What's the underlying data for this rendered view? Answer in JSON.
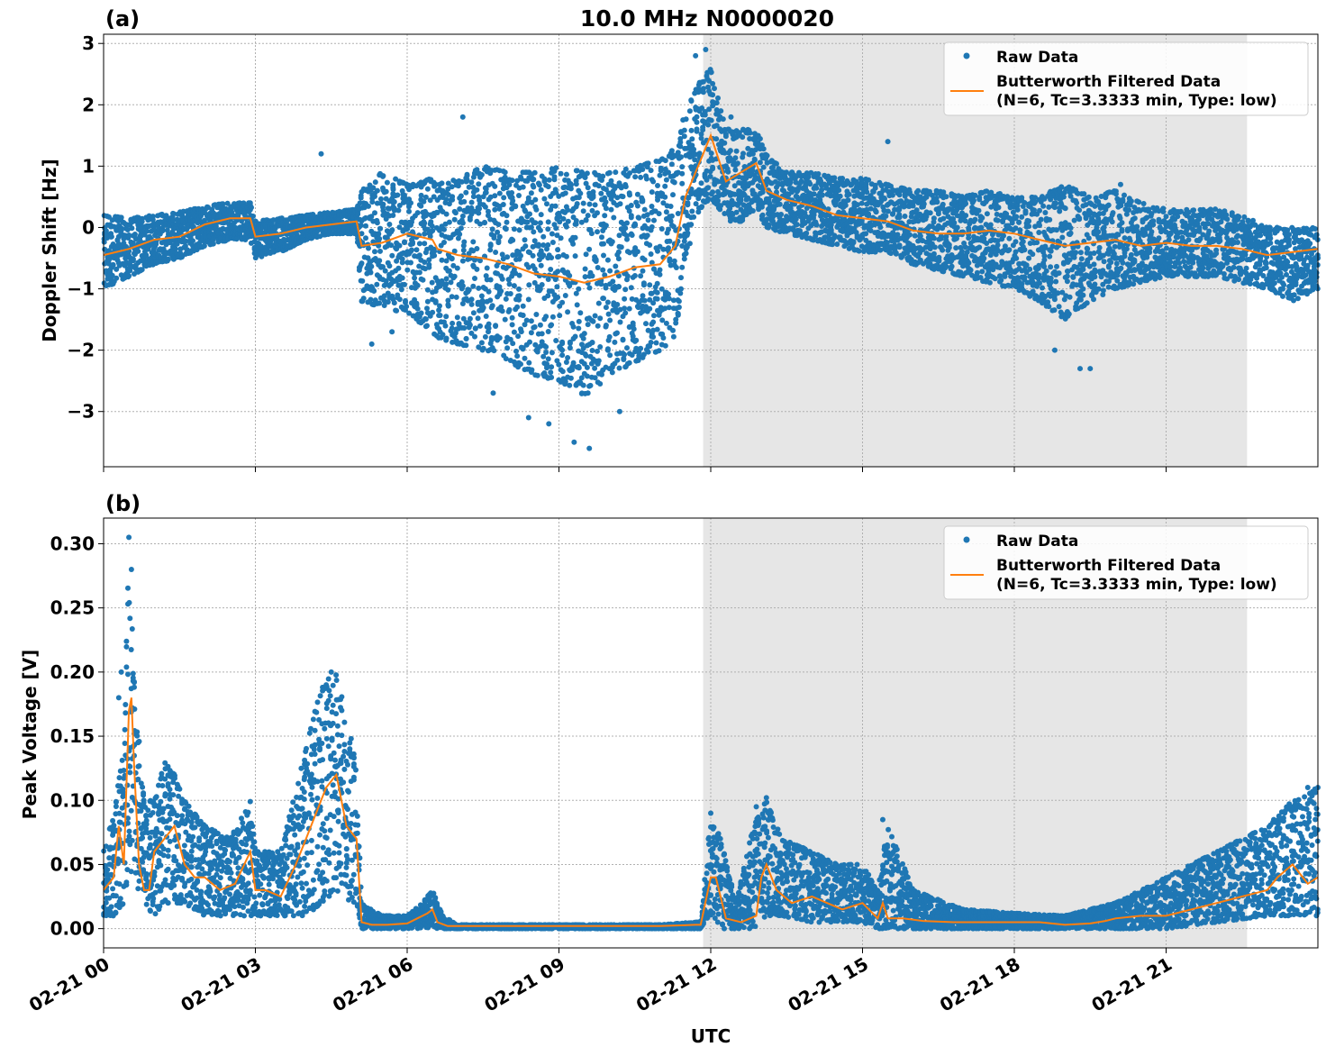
{
  "figure": {
    "title": "10.0 MHz N0000020",
    "xlabel": "UTC",
    "panel_a_label": "(a)",
    "panel_b_label": "(b)",
    "legend": {
      "raw_label": "Raw Data",
      "filtered_line1": "Butterworth Filtered Data",
      "filtered_line2": "(N=6, Tc=3.3333 min, Type: low)"
    },
    "colors": {
      "raw": "#1f77b4",
      "filtered": "#ff7f0e",
      "shade": "#e6e6e6",
      "grid": "#b0b0b0"
    }
  },
  "chart_data": [
    {
      "type": "scatter",
      "panel": "(a)",
      "title": "10.0 MHz N0000020",
      "ylabel": "Doppler Shift [Hz]",
      "xlabel": "",
      "x_unit": "hours UTC since 02-21 00:00",
      "xlim": [
        0,
        24
      ],
      "ylim": [
        -3.9,
        3.15
      ],
      "yticks": [
        -3,
        -2,
        -1,
        0,
        1,
        2,
        3
      ],
      "ytick_labels": [
        "−3",
        "−2",
        "−1",
        "0",
        "1",
        "2",
        "3"
      ],
      "grid": true,
      "legend_position": "top-right",
      "shaded_span": [
        11.85,
        22.6
      ],
      "series": [
        {
          "name": "Butterworth Filtered Data",
          "x": [
            0,
            0.5,
            1,
            1.5,
            2,
            2.5,
            2.9,
            3,
            3.5,
            4,
            4.5,
            5,
            5.1,
            5.5,
            6,
            6.5,
            6.6,
            7,
            7.5,
            8,
            8.5,
            9,
            9.5,
            10,
            10.5,
            11,
            11.3,
            11.5,
            11.8,
            12,
            12.3,
            12.6,
            12.9,
            13.1,
            13.5,
            14,
            14.5,
            15,
            15.5,
            16,
            16.5,
            17,
            17.5,
            18,
            18.5,
            19,
            19.5,
            20,
            20.5,
            21,
            21.5,
            22,
            22.5,
            23,
            23.5,
            24
          ],
          "y": [
            -0.45,
            -0.35,
            -0.2,
            -0.15,
            0.05,
            0.15,
            0.15,
            -0.15,
            -0.1,
            0.0,
            0.05,
            0.1,
            -0.3,
            -0.25,
            -0.1,
            -0.2,
            -0.35,
            -0.45,
            -0.5,
            -0.6,
            -0.75,
            -0.8,
            -0.9,
            -0.8,
            -0.65,
            -0.6,
            -0.3,
            0.5,
            1.1,
            1.5,
            0.75,
            0.9,
            1.05,
            0.6,
            0.45,
            0.35,
            0.2,
            0.15,
            0.1,
            -0.05,
            -0.1,
            -0.1,
            -0.05,
            -0.1,
            -0.2,
            -0.3,
            -0.25,
            -0.2,
            -0.3,
            -0.25,
            -0.3,
            -0.3,
            -0.35,
            -0.45,
            -0.4,
            -0.35
          ]
        },
        {
          "name": "Raw Data",
          "envelope_x": [
            0,
            0.5,
            1,
            1.5,
            2,
            2.5,
            2.9,
            3,
            3.5,
            4,
            4.5,
            5,
            5.1,
            5.5,
            6,
            6.5,
            6.6,
            7,
            7.5,
            8,
            8.5,
            9,
            9.5,
            10,
            10.5,
            11,
            11.3,
            11.5,
            11.8,
            12,
            12.3,
            12.6,
            12.9,
            13.1,
            13.5,
            14,
            14.5,
            15,
            15.5,
            16,
            16.5,
            17,
            17.5,
            18,
            18.5,
            19,
            19.5,
            20,
            20.5,
            21,
            21.5,
            22,
            22.5,
            23,
            23.5,
            24
          ],
          "envelope_upper": [
            0.2,
            0.15,
            0.2,
            0.25,
            0.35,
            0.4,
            0.4,
            0.1,
            0.15,
            0.2,
            0.25,
            0.3,
            0.6,
            0.9,
            0.7,
            0.8,
            0.7,
            0.8,
            1.0,
            0.9,
            0.9,
            1.0,
            0.9,
            0.9,
            1.0,
            1.1,
            1.3,
            1.9,
            2.4,
            2.6,
            1.6,
            1.6,
            1.6,
            1.2,
            0.9,
            0.9,
            0.8,
            0.8,
            0.7,
            0.6,
            0.6,
            0.5,
            0.6,
            0.5,
            0.5,
            0.7,
            0.5,
            0.6,
            0.4,
            0.3,
            0.3,
            0.3,
            0.2,
            0.0,
            0.0,
            0.0
          ],
          "envelope_lower": [
            -1.0,
            -0.8,
            -0.6,
            -0.5,
            -0.3,
            -0.2,
            -0.2,
            -0.5,
            -0.4,
            -0.2,
            -0.1,
            -0.1,
            -1.2,
            -1.3,
            -1.4,
            -1.7,
            -1.8,
            -1.9,
            -2.0,
            -2.2,
            -2.4,
            -2.5,
            -2.8,
            -2.4,
            -2.2,
            -2.0,
            -1.8,
            -0.5,
            0.3,
            0.5,
            0.1,
            0.1,
            0.3,
            0.0,
            -0.1,
            -0.2,
            -0.3,
            -0.4,
            -0.4,
            -0.6,
            -0.7,
            -0.8,
            -0.9,
            -1.0,
            -1.2,
            -1.5,
            -1.2,
            -1.0,
            -0.9,
            -0.8,
            -0.8,
            -0.8,
            -0.9,
            -1.0,
            -1.2,
            -1.0
          ],
          "extremes": [
            [
              4.3,
              1.2
            ],
            [
              5.3,
              -1.9
            ],
            [
              5.7,
              -1.7
            ],
            [
              7.1,
              1.8
            ],
            [
              7.7,
              -2.7
            ],
            [
              8.4,
              -3.1
            ],
            [
              8.8,
              -3.2
            ],
            [
              9.3,
              -3.5
            ],
            [
              9.6,
              -3.6
            ],
            [
              10.2,
              -3.0
            ],
            [
              11.7,
              2.8
            ],
            [
              11.9,
              2.9
            ],
            [
              12.2,
              1.9
            ],
            [
              12.4,
              1.8
            ],
            [
              15.5,
              1.4
            ],
            [
              18.8,
              -2.0
            ],
            [
              19.3,
              -2.3
            ],
            [
              19.5,
              -2.3
            ],
            [
              20.1,
              0.7
            ],
            [
              22.3,
              0.2
            ],
            [
              24.0,
              -0.5
            ]
          ]
        }
      ]
    },
    {
      "type": "scatter",
      "panel": "(b)",
      "ylabel": "Peak Voltage [V]",
      "xlabel": "UTC",
      "x_unit": "hours UTC since 02-21 00:00",
      "xlim": [
        0,
        24
      ],
      "ylim": [
        -0.015,
        0.32
      ],
      "yticks": [
        0.0,
        0.05,
        0.1,
        0.15,
        0.2,
        0.25,
        0.3
      ],
      "ytick_labels": [
        "0.00",
        "0.05",
        "0.10",
        "0.15",
        "0.20",
        "0.25",
        "0.30"
      ],
      "xticks": [
        0,
        3,
        6,
        9,
        12,
        15,
        18,
        21
      ],
      "xtick_labels": [
        "02-21 00",
        "02-21 03",
        "02-21 06",
        "02-21 09",
        "02-21 12",
        "02-21 15",
        "02-21 18",
        "02-21 21"
      ],
      "grid": true,
      "legend_position": "top-right",
      "shaded_span": [
        11.85,
        22.6
      ],
      "series": [
        {
          "name": "Butterworth Filtered Data",
          "x": [
            0,
            0.2,
            0.3,
            0.4,
            0.5,
            0.55,
            0.6,
            0.7,
            0.8,
            0.9,
            1.0,
            1.2,
            1.4,
            1.6,
            1.8,
            2.0,
            2.3,
            2.6,
            2.9,
            3.0,
            3.2,
            3.5,
            3.8,
            4.0,
            4.2,
            4.4,
            4.6,
            4.8,
            5.0,
            5.1,
            5.3,
            5.6,
            6.0,
            6.2,
            6.4,
            6.5,
            6.6,
            6.8,
            7.0,
            8.0,
            9.0,
            10.0,
            11.0,
            11.7,
            11.8,
            12.0,
            12.1,
            12.3,
            12.6,
            12.9,
            13.0,
            13.1,
            13.3,
            13.6,
            14.0,
            14.3,
            14.6,
            15.0,
            15.3,
            15.4,
            15.5,
            15.8,
            16.2,
            16.8,
            17.5,
            18.0,
            18.5,
            19.0,
            19.5,
            19.8,
            20.0,
            20.5,
            21.0,
            21.5,
            22.0,
            22.5,
            23.0,
            23.2,
            23.5,
            23.8,
            24.0
          ],
          "y": [
            0.03,
            0.04,
            0.08,
            0.05,
            0.17,
            0.18,
            0.13,
            0.05,
            0.03,
            0.03,
            0.06,
            0.07,
            0.08,
            0.05,
            0.04,
            0.04,
            0.03,
            0.035,
            0.06,
            0.03,
            0.03,
            0.025,
            0.05,
            0.07,
            0.09,
            0.11,
            0.12,
            0.08,
            0.07,
            0.005,
            0.003,
            0.003,
            0.004,
            0.008,
            0.012,
            0.015,
            0.005,
            0.002,
            0.002,
            0.002,
            0.002,
            0.002,
            0.002,
            0.003,
            0.003,
            0.04,
            0.04,
            0.008,
            0.005,
            0.01,
            0.04,
            0.05,
            0.03,
            0.02,
            0.025,
            0.02,
            0.015,
            0.02,
            0.008,
            0.02,
            0.008,
            0.008,
            0.006,
            0.005,
            0.005,
            0.005,
            0.005,
            0.003,
            0.004,
            0.006,
            0.008,
            0.01,
            0.01,
            0.015,
            0.02,
            0.025,
            0.03,
            0.04,
            0.05,
            0.035,
            0.04
          ]
        },
        {
          "name": "Raw Data",
          "envelope_x": [
            0,
            0.2,
            0.4,
            0.5,
            0.6,
            0.8,
            1.0,
            1.2,
            1.4,
            1.6,
            2.0,
            2.5,
            2.9,
            3.0,
            3.5,
            4.0,
            4.3,
            4.6,
            4.9,
            5.0,
            5.1,
            5.5,
            6.0,
            6.3,
            6.5,
            6.7,
            7.0,
            9.0,
            11.0,
            11.7,
            11.8,
            12.0,
            12.2,
            12.5,
            12.9,
            13.1,
            13.4,
            14.0,
            14.5,
            15.0,
            15.3,
            15.5,
            16.0,
            17.0,
            18.0,
            19.0,
            20.0,
            21.0,
            22.0,
            23.0,
            23.5,
            24.0
          ],
          "envelope_upper": [
            0.06,
            0.09,
            0.14,
            0.3,
            0.2,
            0.1,
            0.1,
            0.13,
            0.12,
            0.1,
            0.08,
            0.07,
            0.1,
            0.06,
            0.06,
            0.14,
            0.19,
            0.2,
            0.15,
            0.12,
            0.02,
            0.01,
            0.01,
            0.02,
            0.03,
            0.01,
            0.003,
            0.003,
            0.003,
            0.005,
            0.005,
            0.09,
            0.07,
            0.02,
            0.09,
            0.1,
            0.07,
            0.06,
            0.05,
            0.05,
            0.03,
            0.08,
            0.03,
            0.015,
            0.012,
            0.01,
            0.02,
            0.04,
            0.06,
            0.08,
            0.1,
            0.11
          ],
          "envelope_lower": [
            0.01,
            0.01,
            0.02,
            0.04,
            0.03,
            0.02,
            0.01,
            0.02,
            0.02,
            0.02,
            0.01,
            0.01,
            0.01,
            0.01,
            0.01,
            0.01,
            0.02,
            0.03,
            0.02,
            0.02,
            0.0,
            0.0,
            0.0,
            0.0,
            0.0,
            0.0,
            0.0,
            0.0,
            0.0,
            0.0,
            0.0,
            0.01,
            0.0,
            0.0,
            0.0,
            0.01,
            0.01,
            0.005,
            0.005,
            0.005,
            0.0,
            0.0,
            0.0,
            0.0,
            0.0,
            0.0,
            0.0,
            0.0,
            0.005,
            0.01,
            0.01,
            0.01
          ],
          "extremes": [
            [
              0.5,
              0.305
            ],
            [
              0.55,
              0.28
            ],
            [
              0.35,
              0.2
            ],
            [
              0.3,
              0.18
            ],
            [
              4.5,
              0.2
            ],
            [
              4.4,
              0.19
            ],
            [
              12.0,
              0.09
            ],
            [
              13.1,
              0.102
            ],
            [
              12.9,
              0.095
            ],
            [
              15.4,
              0.085
            ],
            [
              23.8,
              0.11
            ],
            [
              24.0,
              0.11
            ]
          ]
        }
      ]
    }
  ]
}
